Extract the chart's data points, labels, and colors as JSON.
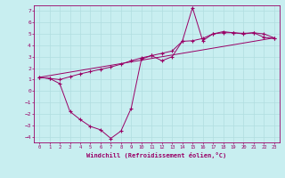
{
  "xlabel": "Windchill (Refroidissement éolien,°C)",
  "bg_color": "#c8eef0",
  "line_color": "#990066",
  "grid_color": "#b0dde0",
  "xlim": [
    -0.5,
    23.5
  ],
  "ylim": [
    -4.5,
    7.5
  ],
  "xticks": [
    0,
    1,
    2,
    3,
    4,
    5,
    6,
    7,
    8,
    9,
    10,
    11,
    12,
    13,
    14,
    15,
    16,
    17,
    18,
    19,
    20,
    21,
    22,
    23
  ],
  "yticks": [
    -4,
    -3,
    -2,
    -1,
    0,
    1,
    2,
    3,
    4,
    5,
    6,
    7
  ],
  "line1_x": [
    0,
    1,
    2,
    3,
    4,
    5,
    6,
    7,
    8,
    9,
    10,
    11,
    12,
    13,
    14,
    15,
    16,
    17,
    18,
    19,
    20,
    21,
    22,
    23
  ],
  "line1_y": [
    1.2,
    1.1,
    0.65,
    -1.8,
    -2.5,
    -3.1,
    -3.4,
    -4.15,
    -3.5,
    -1.5,
    2.8,
    3.1,
    2.65,
    3.0,
    4.35,
    7.3,
    4.4,
    5.0,
    5.2,
    5.1,
    5.0,
    5.1,
    4.7,
    4.6
  ],
  "line2_x": [
    0,
    1,
    2,
    3,
    4,
    5,
    6,
    7,
    8,
    9,
    10,
    11,
    12,
    13,
    14,
    15,
    16,
    17,
    18,
    19,
    20,
    21,
    22,
    23
  ],
  "line2_y": [
    1.2,
    1.1,
    1.0,
    1.25,
    1.5,
    1.7,
    1.9,
    2.1,
    2.35,
    2.65,
    2.9,
    3.1,
    3.3,
    3.5,
    4.35,
    4.4,
    4.6,
    5.0,
    5.1,
    5.1,
    5.05,
    5.1,
    5.0,
    4.65
  ],
  "line3_x": [
    0,
    23
  ],
  "line3_y": [
    1.2,
    4.65
  ]
}
